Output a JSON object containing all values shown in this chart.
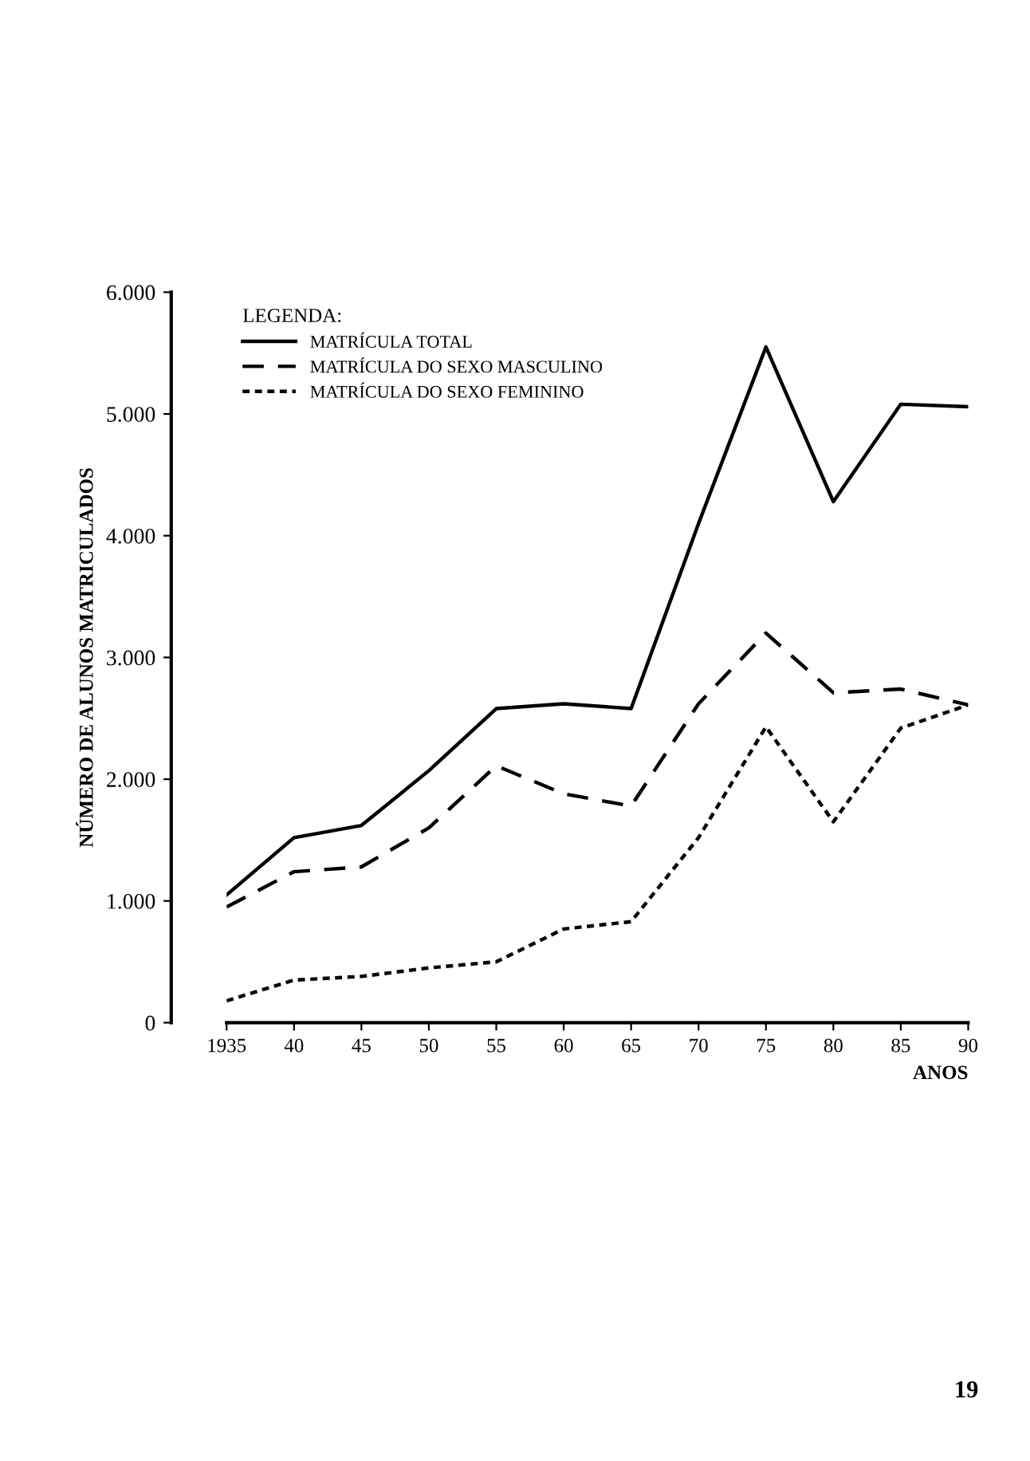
{
  "chart_data": {
    "type": "line",
    "xlabel": "ANOS",
    "ylabel": "NÚMERO DE ALUNOS MATRICULADOS",
    "legend_title": "LEGENDA:",
    "x": [
      1935,
      1940,
      1945,
      1950,
      1955,
      1960,
      1965,
      1970,
      1975,
      1980,
      1985,
      1990
    ],
    "series": [
      {
        "name": "MATRÍCULA TOTAL",
        "color": "#000000",
        "line_style": "solid",
        "values": [
          1050,
          1520,
          1620,
          2070,
          2580,
          2620,
          2580,
          4100,
          5550,
          4280,
          5080,
          5060
        ]
      },
      {
        "name": "MATRÍCULA DO SEXO MASCULINO",
        "color": "#000000",
        "line_style": "dashed",
        "values": [
          950,
          1240,
          1280,
          1600,
          2110,
          1880,
          1780,
          2620,
          3200,
          2710,
          2740,
          2610
        ]
      },
      {
        "name": "MATRÍCULA DO SEXO FEMININO",
        "color": "#000000",
        "line_style": "dotted",
        "values": [
          180,
          350,
          380,
          450,
          500,
          770,
          830,
          1520,
          2430,
          1650,
          2420,
          2610
        ]
      }
    ],
    "xlim": [
      1935,
      1990
    ],
    "xticks": [
      1935,
      {
        "value": 1940,
        "label": "40"
      },
      {
        "value": 1945,
        "label": "45"
      },
      {
        "value": 1950,
        "label": "50"
      },
      {
        "value": 1955,
        "label": "55"
      },
      {
        "value": 1960,
        "label": "60"
      },
      {
        "value": 1965,
        "label": "65"
      },
      {
        "value": 1970,
        "label": "70"
      },
      {
        "value": 1975,
        "label": "75"
      },
      {
        "value": 1980,
        "label": "80"
      },
      {
        "value": 1985,
        "label": "85"
      },
      {
        "value": 1990,
        "label": "90"
      }
    ],
    "ylim": [
      0,
      6000
    ],
    "yticks": [
      0,
      {
        "value": 1000,
        "label": "1.000"
      },
      {
        "value": 2000,
        "label": "2.000"
      },
      {
        "value": 3000,
        "label": "3.000"
      },
      {
        "value": 4000,
        "label": "4.000"
      },
      {
        "value": 5000,
        "label": "5.000"
      },
      {
        "value": 6000,
        "label": "6.000"
      }
    ],
    "grid": false,
    "legend": "top left",
    "marker": "none",
    "annotations": [
      "19"
    ]
  }
}
